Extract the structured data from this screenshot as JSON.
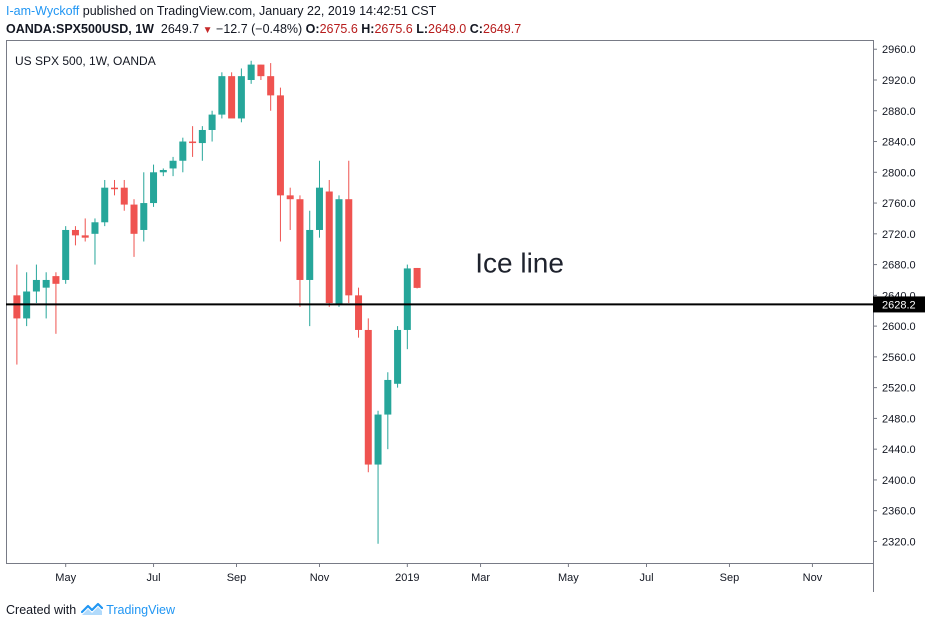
{
  "header": {
    "author": "I-am-Wyckoff",
    "published_text": "published on TradingView.com, January 22, 2019 14:42:51 CST",
    "symbol": "OANDA:SPX500USD, 1W",
    "last_price": "2649.7",
    "change": "−12.7 (−0.48%)",
    "open_label": "O:",
    "open_value": "2675.6",
    "high_label": "H:",
    "high_value": "2675.6",
    "low_label": "L:",
    "low_value": "2649.0",
    "close_label": "C:",
    "close_value": "2649.7"
  },
  "colors": {
    "up": "#26a69a",
    "down": "#ef5350",
    "accent": "#2196f3",
    "negative_text": "#b71c1c"
  },
  "footer": {
    "created_with": "Created with",
    "brand": "TradingView"
  },
  "chart_data": {
    "type": "candlestick",
    "title": "US SPX 500, 1W, OANDA",
    "interval": "1W",
    "y_axis": {
      "side": "right",
      "range": [
        2292,
        2972
      ],
      "ticks": [
        2320,
        2360,
        2400,
        2440,
        2480,
        2520,
        2560,
        2600,
        2640,
        2680,
        2720,
        2760,
        2800,
        2840,
        2880,
        2920,
        2960
      ],
      "tick_labels": [
        "2320.0",
        "2360.0",
        "2400.0",
        "2440.0",
        "2480.0",
        "2520.0",
        "2560.0",
        "2600.0",
        "2640.0",
        "2680.0",
        "2720.0",
        "2760.0",
        "2800.0",
        "2840.0",
        "2880.0",
        "2920.0",
        "2960.0"
      ]
    },
    "x_axis": {
      "labels": [
        "May",
        "Jul",
        "Sep",
        "Nov",
        "2019",
        "Mar",
        "May",
        "Jul",
        "Sep",
        "Nov"
      ],
      "label_index": [
        5,
        14,
        22.5,
        31,
        40,
        47.5,
        56.5,
        64.5,
        73,
        81.5
      ],
      "slot_count": 88
    },
    "candles": [
      {
        "o": 2640,
        "h": 2680,
        "l": 2550,
        "c": 2610
      },
      {
        "o": 2610,
        "h": 2670,
        "l": 2600,
        "c": 2645
      },
      {
        "o": 2645,
        "h": 2680,
        "l": 2630,
        "c": 2660
      },
      {
        "o": 2650,
        "h": 2670,
        "l": 2610,
        "c": 2660
      },
      {
        "o": 2665,
        "h": 2670,
        "l": 2590,
        "c": 2655
      },
      {
        "o": 2660,
        "h": 2730,
        "l": 2655,
        "c": 2725
      },
      {
        "o": 2725,
        "h": 2730,
        "l": 2705,
        "c": 2718
      },
      {
        "o": 2718,
        "h": 2740,
        "l": 2710,
        "c": 2715
      },
      {
        "o": 2720,
        "h": 2740,
        "l": 2680,
        "c": 2735
      },
      {
        "o": 2735,
        "h": 2790,
        "l": 2730,
        "c": 2780
      },
      {
        "o": 2780,
        "h": 2790,
        "l": 2770,
        "c": 2778
      },
      {
        "o": 2780,
        "h": 2790,
        "l": 2750,
        "c": 2758
      },
      {
        "o": 2758,
        "h": 2765,
        "l": 2690,
        "c": 2720
      },
      {
        "o": 2725,
        "h": 2800,
        "l": 2710,
        "c": 2760
      },
      {
        "o": 2760,
        "h": 2810,
        "l": 2755,
        "c": 2800
      },
      {
        "o": 2800,
        "h": 2805,
        "l": 2795,
        "c": 2803
      },
      {
        "o": 2805,
        "h": 2820,
        "l": 2795,
        "c": 2815
      },
      {
        "o": 2815,
        "h": 2845,
        "l": 2800,
        "c": 2840
      },
      {
        "o": 2840,
        "h": 2860,
        "l": 2820,
        "c": 2838
      },
      {
        "o": 2838,
        "h": 2860,
        "l": 2815,
        "c": 2855
      },
      {
        "o": 2855,
        "h": 2880,
        "l": 2840,
        "c": 2875
      },
      {
        "o": 2875,
        "h": 2930,
        "l": 2870,
        "c": 2925
      },
      {
        "o": 2925,
        "h": 2930,
        "l": 2875,
        "c": 2870
      },
      {
        "o": 2870,
        "h": 2935,
        "l": 2865,
        "c": 2925
      },
      {
        "o": 2920,
        "h": 2945,
        "l": 2915,
        "c": 2940
      },
      {
        "o": 2940,
        "h": 2940,
        "l": 2920,
        "c": 2925
      },
      {
        "o": 2925,
        "h": 2942,
        "l": 2880,
        "c": 2900
      },
      {
        "o": 2900,
        "h": 2910,
        "l": 2710,
        "c": 2770
      },
      {
        "o": 2770,
        "h": 2780,
        "l": 2725,
        "c": 2765
      },
      {
        "o": 2765,
        "h": 2770,
        "l": 2625,
        "c": 2660
      },
      {
        "o": 2660,
        "h": 2750,
        "l": 2600,
        "c": 2725
      },
      {
        "o": 2725,
        "h": 2815,
        "l": 2715,
        "c": 2780
      },
      {
        "o": 2775,
        "h": 2790,
        "l": 2625,
        "c": 2630
      },
      {
        "o": 2628,
        "h": 2770,
        "l": 2625,
        "c": 2765
      },
      {
        "o": 2765,
        "h": 2815,
        "l": 2630,
        "c": 2640
      },
      {
        "o": 2640,
        "h": 2650,
        "l": 2585,
        "c": 2595
      },
      {
        "o": 2595,
        "h": 2610,
        "l": 2410,
        "c": 2420
      },
      {
        "o": 2420,
        "h": 2490,
        "l": 2317,
        "c": 2485
      },
      {
        "o": 2485,
        "h": 2540,
        "l": 2440,
        "c": 2530
      },
      {
        "o": 2525,
        "h": 2600,
        "l": 2520,
        "c": 2595
      },
      {
        "o": 2595,
        "h": 2680,
        "l": 2570,
        "c": 2675
      },
      {
        "o": 2675.6,
        "h": 2675.6,
        "l": 2649.0,
        "c": 2649.7
      }
    ],
    "horizontal_line": {
      "value": 2628.2,
      "label": "2628.2"
    },
    "annotation": {
      "text": "Ice line",
      "at_index": 51.5,
      "at_price": 2670
    }
  }
}
